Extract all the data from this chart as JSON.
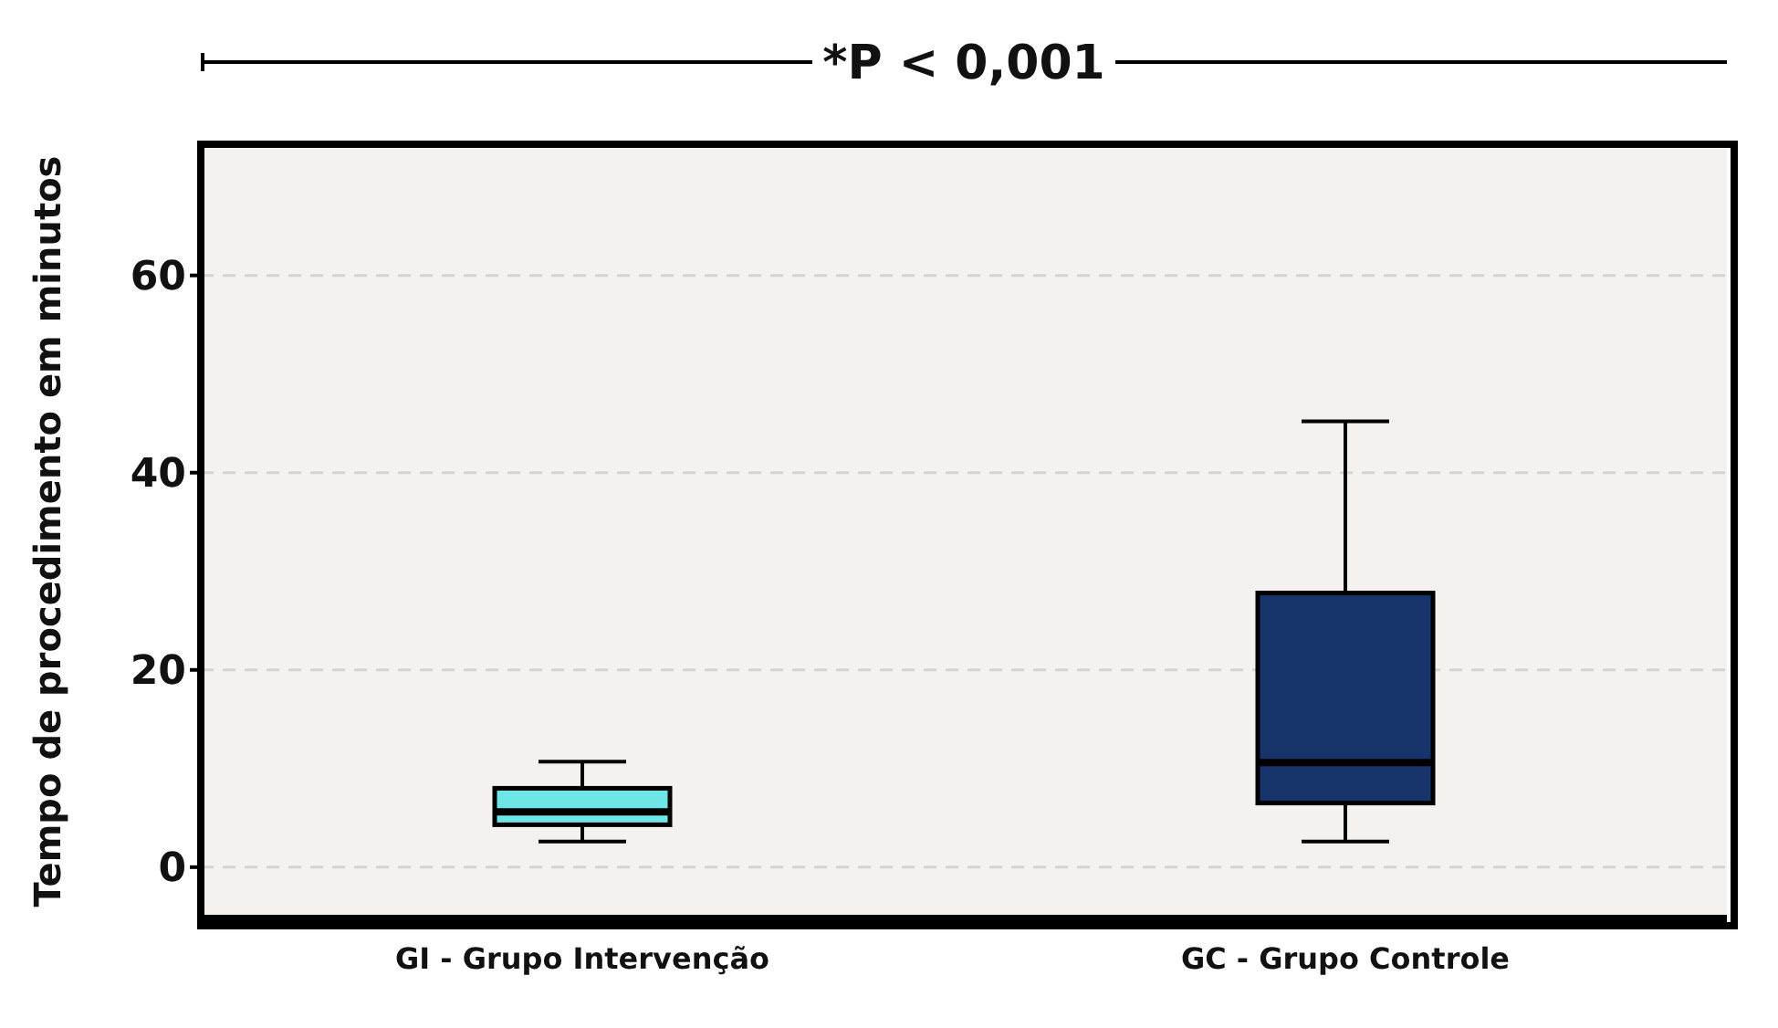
{
  "chart_data": {
    "type": "box",
    "ylabel": "Tempo de procedimento em minutos",
    "annotations": [
      "*P < 0,001"
    ],
    "categories": [
      "GI - Grupo Intervenção",
      "GC - Grupo Controle"
    ],
    "colors": [
      "#6ee6e8",
      "#16336a"
    ],
    "boxes": [
      {
        "low": 2.6,
        "q1": 4.3,
        "median": 5.6,
        "q3": 8.0,
        "high": 10.7
      },
      {
        "low": 2.6,
        "q1": 6.5,
        "median": 10.6,
        "q3": 27.8,
        "high": 45.2
      }
    ],
    "ylim": [
      -5.2,
      73.3
    ],
    "yticks": [
      0,
      20,
      40,
      60
    ],
    "grid": "y"
  }
}
